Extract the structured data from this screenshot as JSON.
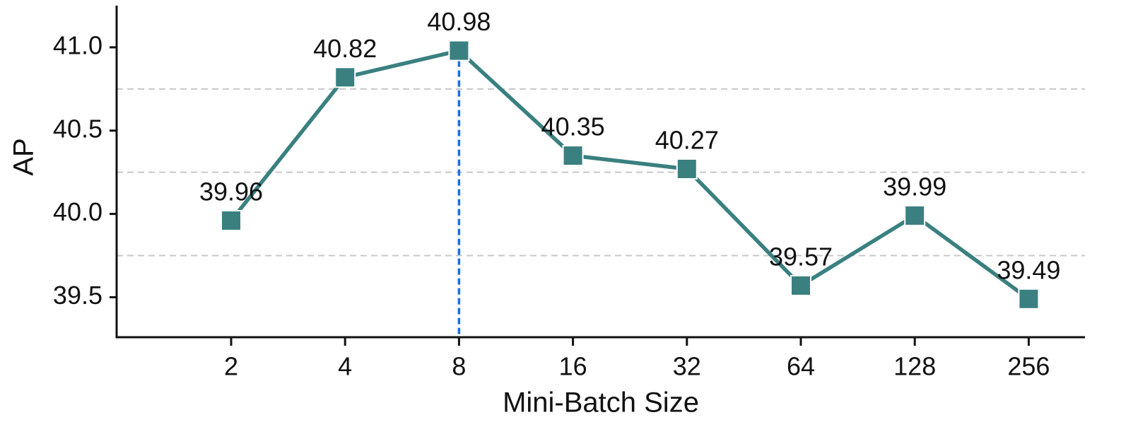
{
  "chart_data": {
    "type": "line",
    "x_label": "Mini-Batch Size",
    "y_label": "AP",
    "categories": [
      "2",
      "4",
      "8",
      "16",
      "32",
      "64",
      "128",
      "256"
    ],
    "series": [
      {
        "name": "AP",
        "color": "#3a8080",
        "values": [
          39.96,
          40.82,
          40.98,
          40.35,
          40.27,
          39.57,
          39.99,
          39.49
        ]
      }
    ],
    "ylim": [
      39.26,
      41.25
    ],
    "yticks": [
      39.5,
      {
        "value": 40,
        "label": "40.0"
      },
      40.5,
      {
        "value": 41,
        "label": "41.0"
      }
    ],
    "minor_grid": [
      39.75,
      40.25,
      40.75
    ],
    "highlight": "max",
    "highlight_color": "#1a6fe0"
  }
}
